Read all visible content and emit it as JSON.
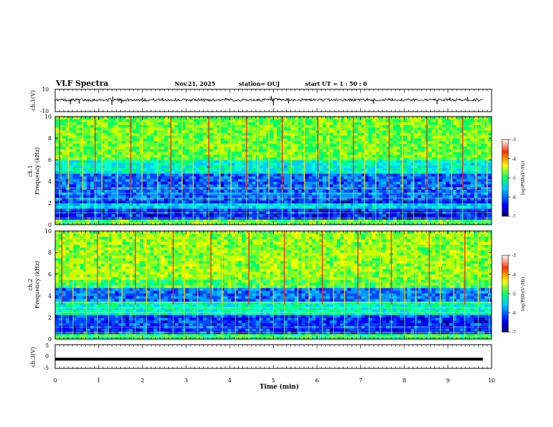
{
  "header": {
    "title": "VLF Spectra",
    "date": "Nov.21, 2025",
    "station": "station= OUJ",
    "start": "start  UT =   1 : 50 : 0"
  },
  "colorbar": {
    "ticks": [
      "-3",
      "-4",
      "-5",
      "-6",
      "-7"
    ],
    "label": "log(PSD)(V²/Hz)"
  },
  "chart_data": [
    {
      "type": "line",
      "panel": "ch1-waveform",
      "ylabel": "ch.1(V)",
      "ylim": [
        -10,
        10
      ],
      "yticks": [
        "10",
        "-10"
      ],
      "xlim": [
        0,
        10
      ],
      "baseline": 0.5,
      "noise_amplitude": 1.2,
      "spikes_t": [
        0.35,
        0.55,
        1.3,
        1.32,
        1.52,
        2.0,
        2.45,
        3.9,
        4.95,
        5.0,
        5.35,
        7.15,
        7.3,
        8.75,
        9.05,
        9.45
      ],
      "spikes_v": [
        -3.5,
        -2.8,
        -4.0,
        3.5,
        -2.5,
        2.8,
        2.5,
        2.2,
        4.0,
        -4.5,
        -2.6,
        2.4,
        -2.8,
        -3.2,
        2.6,
        3.0
      ]
    },
    {
      "type": "heatmap",
      "panel": "ch1-spectrogram",
      "ylabel": "ch.1",
      "ylabel2": "Frequency (kHz)",
      "ylim": [
        0,
        10
      ],
      "yticks": [
        "0",
        "2",
        "4",
        "6",
        "8",
        "10"
      ],
      "xlim": [
        0,
        9.8
      ],
      "colorscale_range": [
        -7,
        -3
      ],
      "sferic_times_min": [
        0.1,
        0.3,
        0.62,
        0.9,
        1.05,
        1.4,
        1.7,
        1.95,
        2.3,
        2.6,
        2.85,
        3.1,
        3.45,
        3.7,
        3.95,
        4.3,
        4.55,
        4.8,
        5.1,
        5.3,
        5.6,
        5.9,
        6.15,
        6.4,
        6.7,
        6.95,
        7.2,
        7.5,
        7.8,
        8.05,
        8.35,
        8.6,
        8.9,
        9.15,
        9.45,
        9.7
      ]
    },
    {
      "type": "heatmap",
      "panel": "ch2-spectrogram",
      "ylabel": "ch.2",
      "ylabel2": "Frequency (kHz)",
      "ylim": [
        0,
        10
      ],
      "yticks": [
        "0",
        "2",
        "4",
        "6",
        "8",
        "10"
      ],
      "xlim": [
        0,
        9.8
      ],
      "colorscale_range": [
        -7,
        -3
      ],
      "sferic_times_min": [
        0.15,
        0.4,
        0.7,
        0.95,
        1.2,
        1.5,
        1.8,
        2.05,
        2.35,
        2.65,
        2.9,
        3.2,
        3.5,
        3.75,
        4.05,
        4.35,
        4.6,
        4.9,
        5.15,
        5.45,
        5.7,
        6.0,
        6.25,
        6.5,
        6.8,
        7.05,
        7.3,
        7.55,
        7.85,
        8.1,
        8.4,
        8.65,
        8.95,
        9.2,
        9.5,
        9.75
      ]
    },
    {
      "type": "line",
      "panel": "ch3-waveform",
      "ylabel": "ch.3(V)",
      "ylim": [
        -5,
        5
      ],
      "yticks": [
        "5",
        "0",
        "-5"
      ],
      "xlim": [
        0,
        10
      ],
      "value": -1.1,
      "xlabel": "Time  (min)",
      "xticks": [
        "0",
        "1",
        "2",
        "3",
        "4",
        "5",
        "6",
        "7",
        "8",
        "9",
        "10"
      ]
    }
  ]
}
